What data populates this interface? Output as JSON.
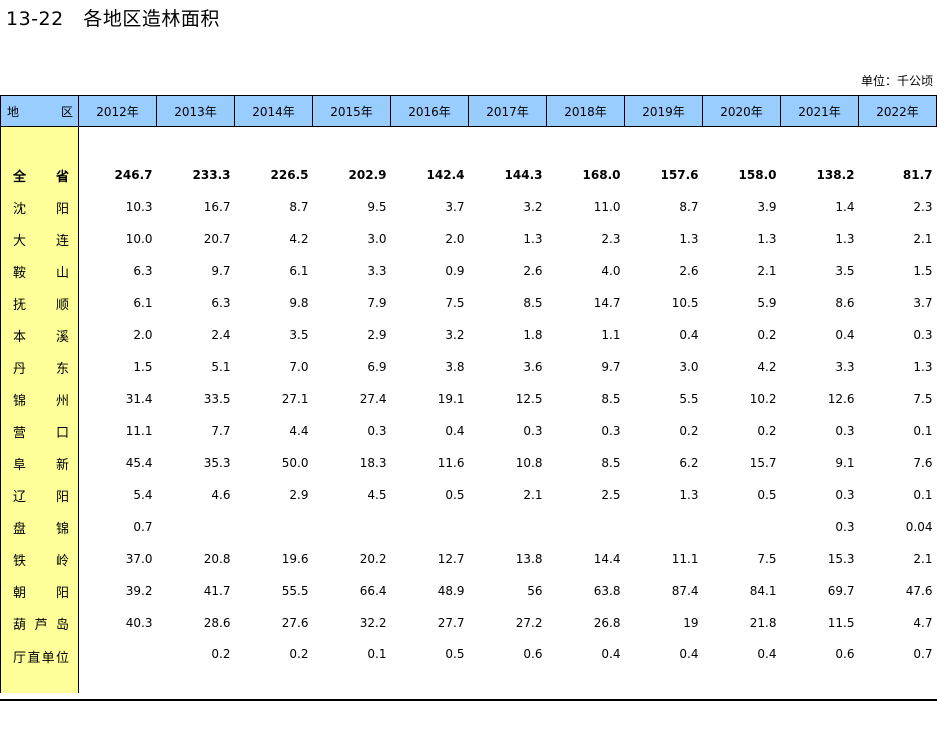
{
  "title": "13-22   各地区造林面积",
  "unit_label": "单位：千公顷",
  "header": {
    "region": "地 区",
    "years": [
      "2012年",
      "2013年",
      "2014年",
      "2015年",
      "2016年",
      "2017年",
      "2018年",
      "2019年",
      "2020年",
      "2021年",
      "2022年"
    ]
  },
  "rows": [
    {
      "region": "全 省",
      "values": [
        "246.7",
        "233.3",
        "226.5",
        "202.9",
        "142.4",
        "144.3",
        "168.0",
        "157.6",
        "158.0",
        "138.2",
        "81.7"
      ]
    },
    {
      "region": "沈 阳",
      "values": [
        "10.3",
        "16.7",
        "8.7",
        "9.5",
        "3.7",
        "3.2",
        "11.0",
        "8.7",
        "3.9",
        "1.4",
        "2.3"
      ]
    },
    {
      "region": "大 连",
      "values": [
        "10.0",
        "20.7",
        "4.2",
        "3.0",
        "2.0",
        "1.3",
        "2.3",
        "1.3",
        "1.3",
        "1.3",
        "2.1"
      ]
    },
    {
      "region": "鞍 山",
      "values": [
        "6.3",
        "9.7",
        "6.1",
        "3.3",
        "0.9",
        "2.6",
        "4.0",
        "2.6",
        "2.1",
        "3.5",
        "1.5"
      ]
    },
    {
      "region": "抚 顺",
      "values": [
        "6.1",
        "6.3",
        "9.8",
        "7.9",
        "7.5",
        "8.5",
        "14.7",
        "10.5",
        "5.9",
        "8.6",
        "3.7"
      ]
    },
    {
      "region": "本 溪",
      "values": [
        "2.0",
        "2.4",
        "3.5",
        "2.9",
        "3.2",
        "1.8",
        "1.1",
        "0.4",
        "0.2",
        "0.4",
        "0.3"
      ]
    },
    {
      "region": "丹 东",
      "values": [
        "1.5",
        "5.1",
        "7.0",
        "6.9",
        "3.8",
        "3.6",
        "9.7",
        "3.0",
        "4.2",
        "3.3",
        "1.3"
      ]
    },
    {
      "region": "锦 州",
      "values": [
        "31.4",
        "33.5",
        "27.1",
        "27.4",
        "19.1",
        "12.5",
        "8.5",
        "5.5",
        "10.2",
        "12.6",
        "7.5"
      ]
    },
    {
      "region": "营 口",
      "values": [
        "11.1",
        "7.7",
        "4.4",
        "0.3",
        "0.4",
        "0.3",
        "0.3",
        "0.2",
        "0.2",
        "0.3",
        "0.1"
      ]
    },
    {
      "region": "阜 新",
      "values": [
        "45.4",
        "35.3",
        "50.0",
        "18.3",
        "11.6",
        "10.8",
        "8.5",
        "6.2",
        "15.7",
        "9.1",
        "7.6"
      ]
    },
    {
      "region": "辽 阳",
      "values": [
        "5.4",
        "4.6",
        "2.9",
        "4.5",
        "0.5",
        "2.1",
        "2.5",
        "1.3",
        "0.5",
        "0.3",
        "0.1"
      ]
    },
    {
      "region": "盘 锦",
      "values": [
        "0.7",
        "",
        "",
        "",
        "",
        "",
        "",
        "",
        "",
        "0.3",
        "0.04"
      ]
    },
    {
      "region": "铁 岭",
      "values": [
        "37.0",
        "20.8",
        "19.6",
        "20.2",
        "12.7",
        "13.8",
        "14.4",
        "11.1",
        "7.5",
        "15.3",
        "2.1"
      ]
    },
    {
      "region": "朝 阳",
      "values": [
        "39.2",
        "41.7",
        "55.5",
        "66.4",
        "48.9",
        "56",
        "63.8",
        "87.4",
        "84.1",
        "69.7",
        "47.6"
      ]
    },
    {
      "region": "葫 芦 岛",
      "values": [
        "40.3",
        "28.6",
        "27.6",
        "32.2",
        "27.7",
        "27.2",
        "26.8",
        "19",
        "21.8",
        "11.5",
        "4.7"
      ]
    },
    {
      "region": "厅直单位",
      "values": [
        "",
        "0.2",
        "0.2",
        "0.1",
        "0.5",
        "0.6",
        "0.4",
        "0.4",
        "0.4",
        "0.6",
        "0.7"
      ]
    }
  ]
}
